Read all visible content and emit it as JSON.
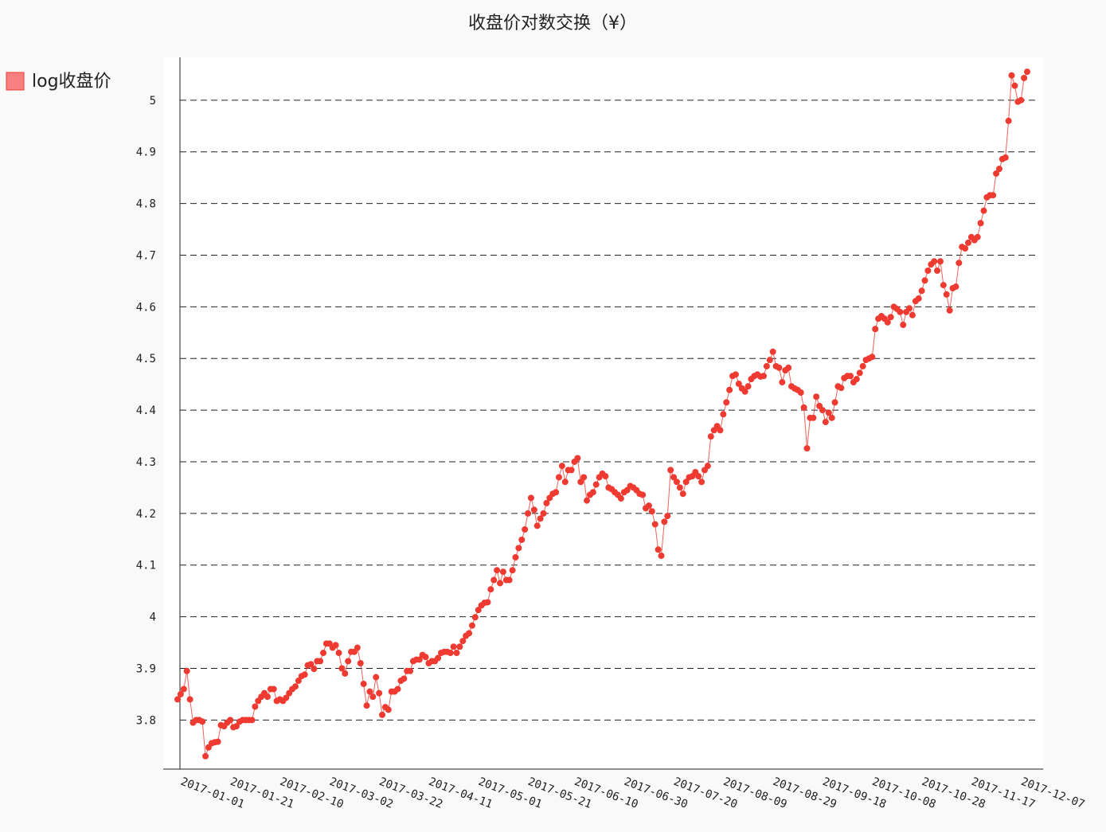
{
  "chart_data": {
    "type": "line",
    "title": "收盘价对数交换（¥）",
    "categories": [
      "2017-01-01",
      null,
      null,
      null,
      null,
      null,
      null,
      null,
      null,
      null,
      null,
      null,
      null,
      null,
      null,
      null,
      "2017-01-21",
      null,
      null,
      null,
      null,
      null,
      null,
      null,
      null,
      null,
      null,
      null,
      null,
      null,
      null,
      null,
      "2017-02-10",
      null,
      null,
      null,
      null,
      null,
      null,
      null,
      null,
      null,
      null,
      null,
      null,
      null,
      null,
      null,
      "2017-03-02",
      null,
      null,
      null,
      null,
      null,
      null,
      null,
      null,
      null,
      null,
      null,
      null,
      null,
      null,
      null,
      "2017-03-22",
      null,
      null,
      null,
      null,
      null,
      null,
      null,
      null,
      null,
      null,
      null,
      null,
      null,
      null,
      null,
      "2017-04-11",
      null,
      null,
      null,
      null,
      null,
      null,
      null,
      null,
      null,
      null,
      null,
      null,
      null,
      null,
      null,
      "2017-05-01",
      null,
      null,
      null,
      null,
      null,
      null,
      null,
      null,
      null,
      null,
      null,
      null,
      null,
      null,
      null,
      "2017-05-21",
      null,
      null,
      null,
      null,
      null,
      null,
      null,
      null,
      null,
      null,
      null,
      null,
      null,
      null,
      "2017-06-10",
      null,
      null,
      null,
      null,
      null,
      null,
      null,
      null,
      null,
      null,
      null,
      null,
      null,
      null,
      null,
      "2017-06-30",
      null,
      null,
      null,
      null,
      null,
      null,
      null,
      null,
      null,
      null,
      null,
      null,
      null,
      null,
      null,
      "2017-07-20",
      null,
      null,
      null,
      null,
      null,
      null,
      null,
      null,
      null,
      null,
      null,
      null,
      null,
      null,
      null,
      "2017-08-09",
      null,
      null,
      null,
      null,
      null,
      null,
      null,
      null,
      null,
      null,
      null,
      null,
      null,
      null,
      null,
      "2017-08-29",
      null,
      null,
      null,
      null,
      null,
      null,
      null,
      null,
      null,
      null,
      null,
      null,
      null,
      null,
      null,
      "2017-09-18",
      null,
      null,
      null,
      null,
      null,
      null,
      null,
      null,
      null,
      null,
      null,
      null,
      null,
      null,
      null,
      "2017-10-08",
      null,
      null,
      null,
      null,
      null,
      null,
      null,
      null,
      null,
      null,
      null,
      null,
      null,
      null,
      null,
      "2017-10-28",
      null,
      null,
      null,
      null,
      null,
      null,
      null,
      null,
      null,
      null,
      null,
      null,
      null,
      null,
      null,
      "2017-11-17",
      null,
      null,
      null,
      null,
      null,
      null,
      null,
      null,
      null,
      null,
      null,
      null,
      null,
      null,
      null,
      "2017-12-07",
      null,
      null,
      null
    ],
    "series": [
      {
        "name": "log收盘价",
        "color": "#ee3a30",
        "values": [
          3.84,
          3.85,
          3.86,
          3.895,
          3.84,
          3.795,
          3.8,
          3.8,
          3.797,
          3.73,
          3.747,
          3.755,
          3.757,
          3.758,
          3.79,
          3.788,
          3.795,
          3.8,
          3.786,
          3.788,
          3.797,
          3.8,
          3.8,
          3.8,
          3.8,
          3.826,
          3.837,
          3.845,
          3.852,
          3.845,
          3.86,
          3.86,
          3.837,
          3.84,
          3.837,
          3.843,
          3.852,
          3.86,
          3.865,
          3.876,
          3.885,
          3.888,
          3.906,
          3.908,
          3.899,
          3.914,
          3.914,
          3.93,
          3.948,
          3.948,
          3.94,
          3.945,
          3.93,
          3.9,
          3.89,
          3.914,
          3.932,
          3.932,
          3.94,
          3.91,
          3.87,
          3.828,
          3.855,
          3.845,
          3.883,
          3.852,
          3.81,
          3.825,
          3.82,
          3.855,
          3.855,
          3.86,
          3.876,
          3.88,
          3.895,
          3.895,
          3.914,
          3.917,
          3.917,
          3.926,
          3.922,
          3.91,
          3.914,
          3.914,
          3.92,
          3.93,
          3.932,
          3.932,
          3.93,
          3.942,
          3.93,
          3.942,
          3.953,
          3.963,
          3.968,
          3.983,
          3.999,
          4.013,
          4.022,
          4.027,
          4.028,
          4.053,
          4.071,
          4.09,
          4.065,
          4.087,
          4.071,
          4.071,
          4.09,
          4.115,
          4.133,
          4.149,
          4.169,
          4.2,
          4.23,
          4.207,
          4.176,
          4.19,
          4.2,
          4.22,
          4.23,
          4.238,
          4.241,
          4.27,
          4.292,
          4.261,
          4.284,
          4.284,
          4.3,
          4.307,
          4.261,
          4.27,
          4.225,
          4.236,
          4.241,
          4.256,
          4.27,
          4.277,
          4.272,
          4.25,
          4.247,
          4.241,
          4.236,
          4.229,
          4.241,
          4.245,
          4.253,
          4.25,
          4.245,
          4.238,
          4.236,
          4.21,
          4.215,
          4.204,
          4.179,
          4.13,
          4.118,
          4.184,
          4.195,
          4.284,
          4.27,
          4.261,
          4.25,
          4.238,
          4.261,
          4.27,
          4.272,
          4.28,
          4.272,
          4.261,
          4.284,
          4.292,
          4.349,
          4.361,
          4.369,
          4.361,
          4.392,
          4.415,
          4.439,
          4.466,
          4.469,
          4.451,
          4.442,
          4.436,
          4.446,
          4.46,
          4.466,
          4.469,
          4.465,
          4.466,
          4.485,
          4.497,
          4.513,
          4.485,
          4.482,
          4.454,
          4.477,
          4.482,
          4.446,
          4.442,
          4.439,
          4.434,
          4.405,
          4.326,
          4.385,
          4.385,
          4.426,
          4.408,
          4.4,
          4.377,
          4.395,
          4.385,
          4.415,
          4.446,
          4.443,
          4.462,
          4.466,
          4.466,
          4.454,
          4.46,
          4.472,
          4.485,
          4.497,
          4.5,
          4.503,
          4.557,
          4.577,
          4.582,
          4.577,
          4.57,
          4.58,
          4.6,
          4.596,
          4.59,
          4.565,
          4.59,
          4.597,
          4.584,
          4.611,
          4.616,
          4.631,
          4.651,
          4.67,
          4.682,
          4.688,
          4.67,
          4.688,
          4.642,
          4.624,
          4.593,
          4.636,
          4.639,
          4.685,
          4.716,
          4.713,
          4.724,
          4.735,
          4.729,
          4.735,
          4.762,
          4.786,
          4.812,
          4.816,
          4.816,
          4.858,
          4.867,
          4.886,
          4.889,
          4.96,
          5.048,
          5.028,
          4.997,
          5.0,
          5.043,
          5.055
        ]
      }
    ],
    "ylim": [
      3.705,
      5.083
    ],
    "yticks": [
      3.8,
      3.9,
      4,
      4.1,
      4.2,
      4.3,
      4.4,
      4.5,
      4.6,
      4.7,
      4.8,
      4.9,
      5
    ],
    "grid": true,
    "legend": "top-left"
  }
}
